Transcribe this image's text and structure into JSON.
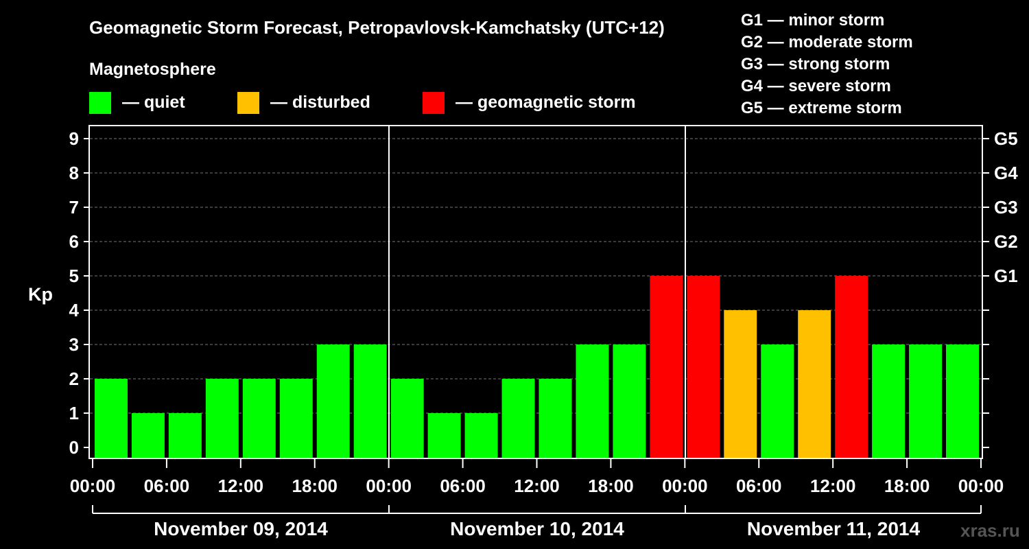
{
  "chart_data": {
    "type": "bar",
    "title": "Geomagnetic Storm Forecast, Petropavlovsk-Kamchatsky (UTC+12)",
    "legend_title": "Magnetosphere",
    "legend": [
      {
        "label": "— quiet",
        "color": "#00ff00"
      },
      {
        "label": "— disturbed",
        "color": "#ffc000"
      },
      {
        "label": "— geomagnetic storm",
        "color": "#ff0000"
      }
    ],
    "storm_scale": [
      "G1 — minor storm",
      "G2 — moderate storm",
      "G3 — strong storm",
      "G4 — severe storm",
      "G5 — extreme storm"
    ],
    "ylabel": "Kp",
    "ylim": [
      0,
      9
    ],
    "yticks": [
      "0",
      "1",
      "2",
      "3",
      "4",
      "5",
      "6",
      "7",
      "8",
      "9"
    ],
    "right_ticks": [
      {
        "kp": 5,
        "label": "G1"
      },
      {
        "kp": 6,
        "label": "G2"
      },
      {
        "kp": 7,
        "label": "G3"
      },
      {
        "kp": 8,
        "label": "G4"
      },
      {
        "kp": 9,
        "label": "G5"
      }
    ],
    "xtick_labels": [
      "00:00",
      "06:00",
      "12:00",
      "18:00",
      "00:00",
      "06:00",
      "12:00",
      "18:00",
      "00:00",
      "06:00",
      "12:00",
      "18:00",
      "00:00"
    ],
    "days": [
      "November 09, 2014",
      "November 10, 2014",
      "November 11, 2014"
    ],
    "interval_hours": 3,
    "values": [
      2,
      1,
      1,
      2,
      2,
      2,
      3,
      3,
      2,
      1,
      1,
      2,
      2,
      3,
      3,
      5,
      5,
      4,
      3,
      4,
      5,
      3,
      3,
      3
    ],
    "colors": {
      "quiet": "#00ff00",
      "disturbed": "#ffc000",
      "storm": "#ff0000"
    },
    "watermark": "xras.ru"
  }
}
